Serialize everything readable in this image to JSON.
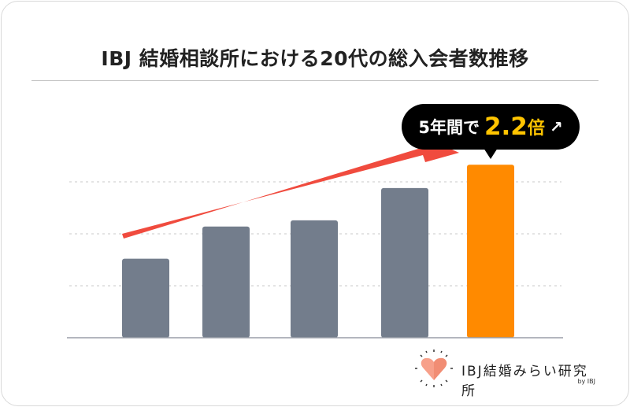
{
  "chart_data": {
    "type": "bar",
    "title": "IBJ 結婚相談所における20代の総入会者数推移",
    "categories": [
      "",
      "",
      "",
      "",
      ""
    ],
    "values": [
      1.52,
      2.14,
      2.26,
      2.88,
      3.33
    ],
    "ylim": [
      0,
      3.5
    ],
    "gridlines": [
      1,
      2,
      3
    ],
    "grid": true,
    "xlabel": "",
    "ylabel": "",
    "colors": {
      "default": "#737d8c",
      "highlight": "#ff8a00",
      "arrow": "#f04b3e"
    },
    "highlight_index": 4,
    "annotation": {
      "prefix": "5年間で",
      "value": "2.2",
      "unit": "倍",
      "arrow": "↗"
    }
  },
  "logo": {
    "text": "IBJ結婚みらい研究所",
    "by": "by IBJ"
  }
}
